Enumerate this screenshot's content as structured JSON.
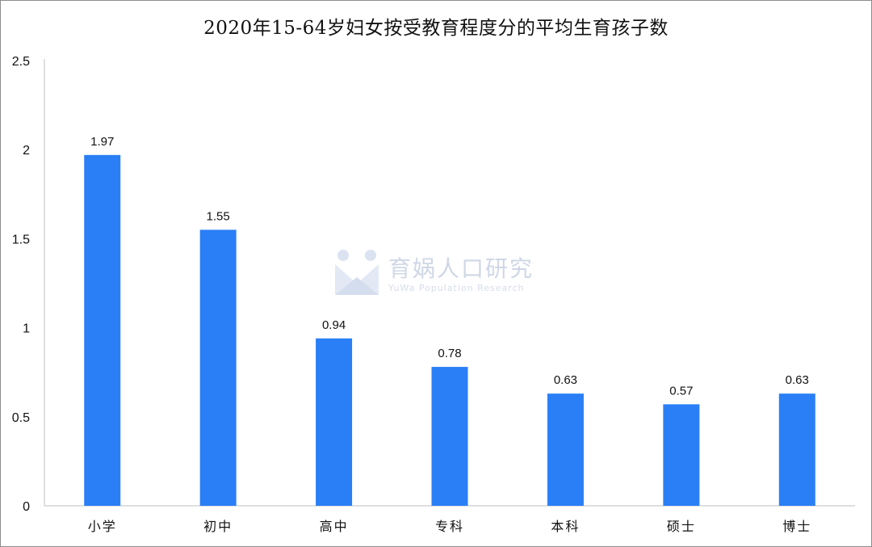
{
  "chart_data": {
    "type": "bar",
    "title": "2020年15-64岁妇女按受教育程度分的平均生育孩子数",
    "categories": [
      "小学",
      "初中",
      "高中",
      "专科",
      "本科",
      "硕士",
      "博士"
    ],
    "values": [
      1.97,
      1.55,
      0.94,
      0.78,
      0.63,
      0.57,
      0.63
    ],
    "value_labels": [
      "1.97",
      "1.55",
      "0.94",
      "0.78",
      "0.63",
      "0.57",
      "0.63"
    ],
    "yticks": [
      "0",
      "0.5",
      "1",
      "1.5",
      "2",
      "2.5"
    ],
    "ylim": [
      0,
      2.5
    ],
    "grid": false,
    "bar_color": "#2a7ff6"
  },
  "watermark": {
    "name": "育娲人口研究",
    "sub": "YuWa Population Research"
  }
}
